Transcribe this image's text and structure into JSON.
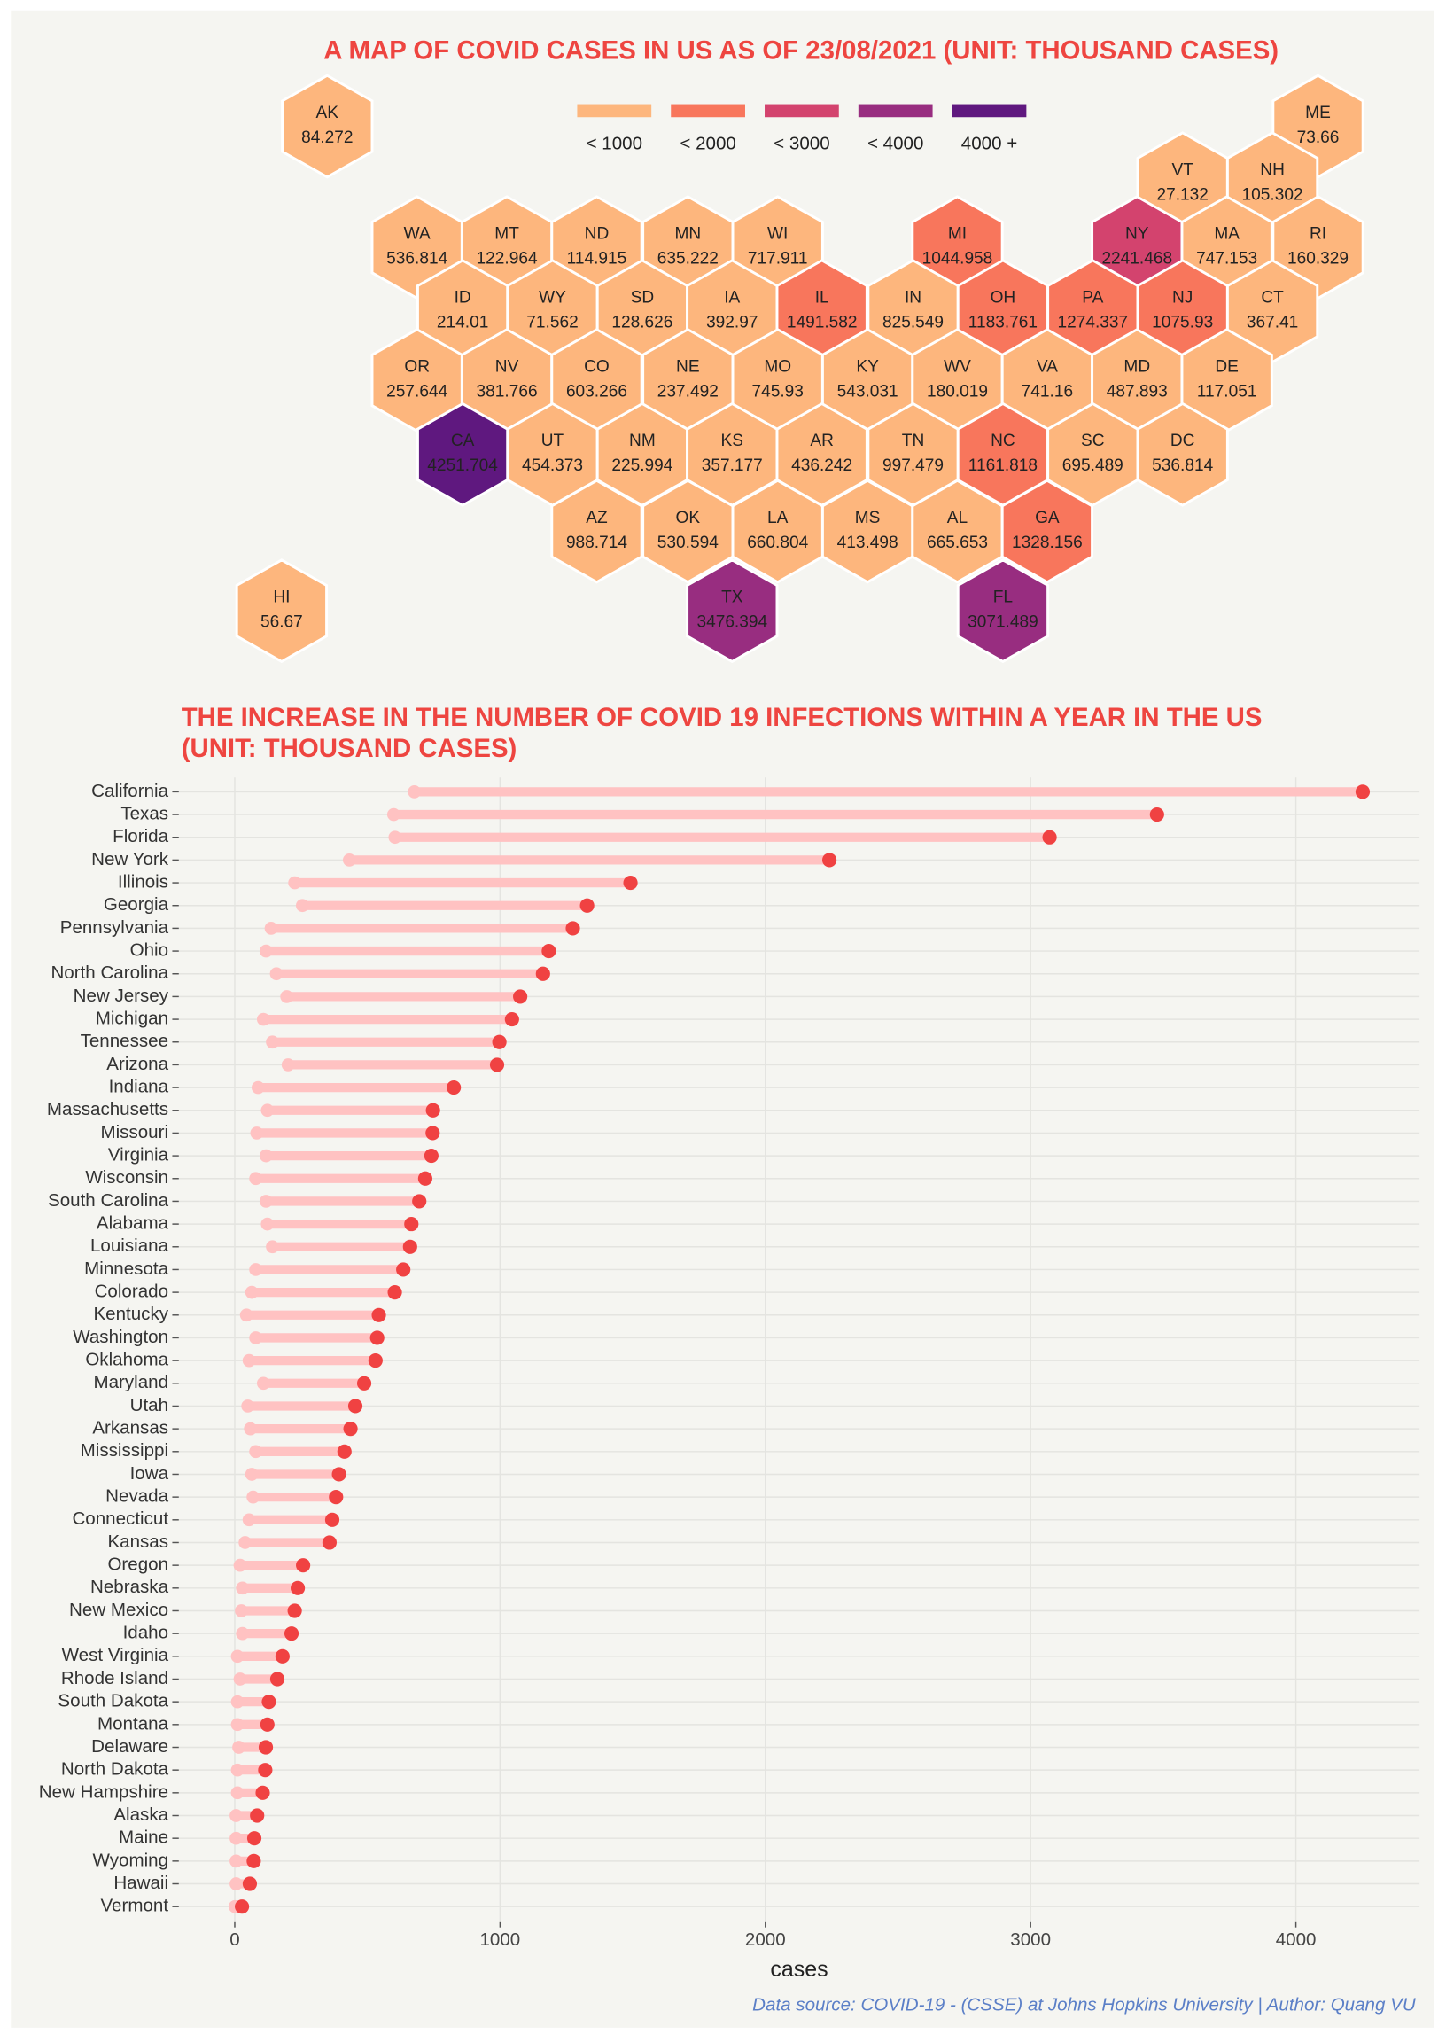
{
  "chart_data": [
    {
      "type": "hexmap",
      "title": "A MAP OF COVID CASES IN US AS OF 23/08/2021 (UNIT: THOUSAND CASES)",
      "categories": [
        "AK",
        "ME",
        "VT",
        "NH",
        "WA",
        "MT",
        "ND",
        "MN",
        "WI",
        "MI",
        "NY",
        "MA",
        "RI",
        "ID",
        "WY",
        "SD",
        "IA",
        "IL",
        "IN",
        "OH",
        "PA",
        "NJ",
        "CT",
        "OR",
        "NV",
        "CO",
        "NE",
        "MO",
        "KY",
        "WV",
        "VA",
        "MD",
        "DE",
        "CA",
        "UT",
        "NM",
        "KS",
        "AR",
        "TN",
        "NC",
        "SC",
        "DC",
        "AZ",
        "OK",
        "LA",
        "MS",
        "AL",
        "GA",
        "TX",
        "FL",
        "HI"
      ],
      "values": [
        84.272,
        73.66,
        27.132,
        105.302,
        536.814,
        122.964,
        114.915,
        635.222,
        717.911,
        1044.958,
        2241.468,
        747.153,
        160.329,
        214.01,
        71.562,
        128.626,
        392.97,
        1491.582,
        825.549,
        1183.761,
        1274.337,
        1075.93,
        367.41,
        257.644,
        381.766,
        603.266,
        237.492,
        745.93,
        543.031,
        180.019,
        741.16,
        487.893,
        117.051,
        4251.704,
        454.373,
        225.994,
        357.177,
        436.242,
        997.479,
        1161.818,
        695.489,
        536.814,
        988.714,
        530.594,
        660.804,
        413.498,
        665.653,
        1328.156,
        3476.394,
        3071.489,
        56.67
      ],
      "legend": [
        {
          "value": 1000,
          "label": "< 1000",
          "color": "#fdb67d"
        },
        {
          "value": 2000,
          "label": "< 2000",
          "color": "#f8765c"
        },
        {
          "value": 3000,
          "label": "< 3000",
          "color": "#d3436e"
        },
        {
          "value": 4000,
          "label": "< 4000",
          "color": "#982d80"
        },
        {
          "value": 4000,
          "label": "4000 +",
          "color": "#5f187f"
        }
      ]
    },
    {
      "type": "dumbbell",
      "title": [
        "THE INCREASE IN THE NUMBER OF COVID 19 INFECTIONS WITHIN A YEAR IN THE US",
        "(UNIT: THOUSAND CASES)"
      ],
      "categories": [
        "California",
        "Texas",
        "Florida",
        "New York",
        "Illinois",
        "Georgia",
        "Pennsylvania",
        "Ohio",
        "North Carolina",
        "New Jersey",
        "Michigan",
        "Tennessee",
        "Arizona",
        "Indiana",
        "Massachusetts",
        "Missouri",
        "Virginia",
        "Wisconsin",
        "South Carolina",
        "Alabama",
        "Louisiana",
        "Minnesota",
        "Colorado",
        "Kentucky",
        "Washington",
        "Oklahoma",
        "Maryland",
        "Utah",
        "Arkansas",
        "Mississippi",
        "Iowa",
        "Nevada",
        "Connecticut",
        "Kansas",
        "Oregon",
        "Nebraska",
        "New Mexico",
        "Idaho",
        "West Virginia",
        "Rhode Island",
        "South Dakota",
        "Montana",
        "Delaware",
        "North Dakota",
        "New Hampshire",
        "Alaska",
        "Maine",
        "Wyoming",
        "Hawaii",
        "Vermont"
      ],
      "series": [
        {
          "color": "#ffc2c2",
          "values": [
            677,
            599,
            604,
            432,
            226,
            255,
            137,
            118,
            157,
            196,
            108,
            142,
            201,
            88,
            123,
            83,
            118,
            79,
            118,
            123,
            142,
            79,
            64,
            44,
            79,
            54,
            108,
            49,
            59,
            79,
            64,
            69,
            54,
            39,
            20,
            29,
            25,
            29,
            10,
            20,
            10,
            10,
            15,
            10,
            10,
            5,
            5,
            5,
            5,
            1
          ]
        },
        {
          "color": "#f04242",
          "values": [
            4251.704,
            3476.394,
            3071.489,
            2241.468,
            1491.582,
            1328.156,
            1274.337,
            1183.761,
            1161.818,
            1075.93,
            1044.958,
            997.479,
            988.714,
            825.549,
            747.153,
            745.93,
            741.16,
            717.911,
            695.489,
            665.653,
            660.804,
            635.222,
            603.266,
            543.031,
            536.814,
            530.594,
            487.893,
            454.373,
            436.242,
            413.498,
            392.97,
            381.766,
            367.41,
            357.177,
            257.644,
            237.492,
            225.994,
            214.01,
            180.019,
            160.329,
            128.626,
            122.964,
            117.051,
            114.915,
            105.302,
            84.272,
            73.66,
            71.562,
            56.67,
            27.132
          ]
        }
      ],
      "xlim": [
        -211,
        4466
      ],
      "xticks": [
        0,
        1000,
        2000,
        3000,
        4000
      ],
      "xlabel": "cases",
      "grid": true,
      "caption": "Data source: COVID-19 - (CSSE) at Johns Hopkins University | Author: Quang VU"
    }
  ]
}
